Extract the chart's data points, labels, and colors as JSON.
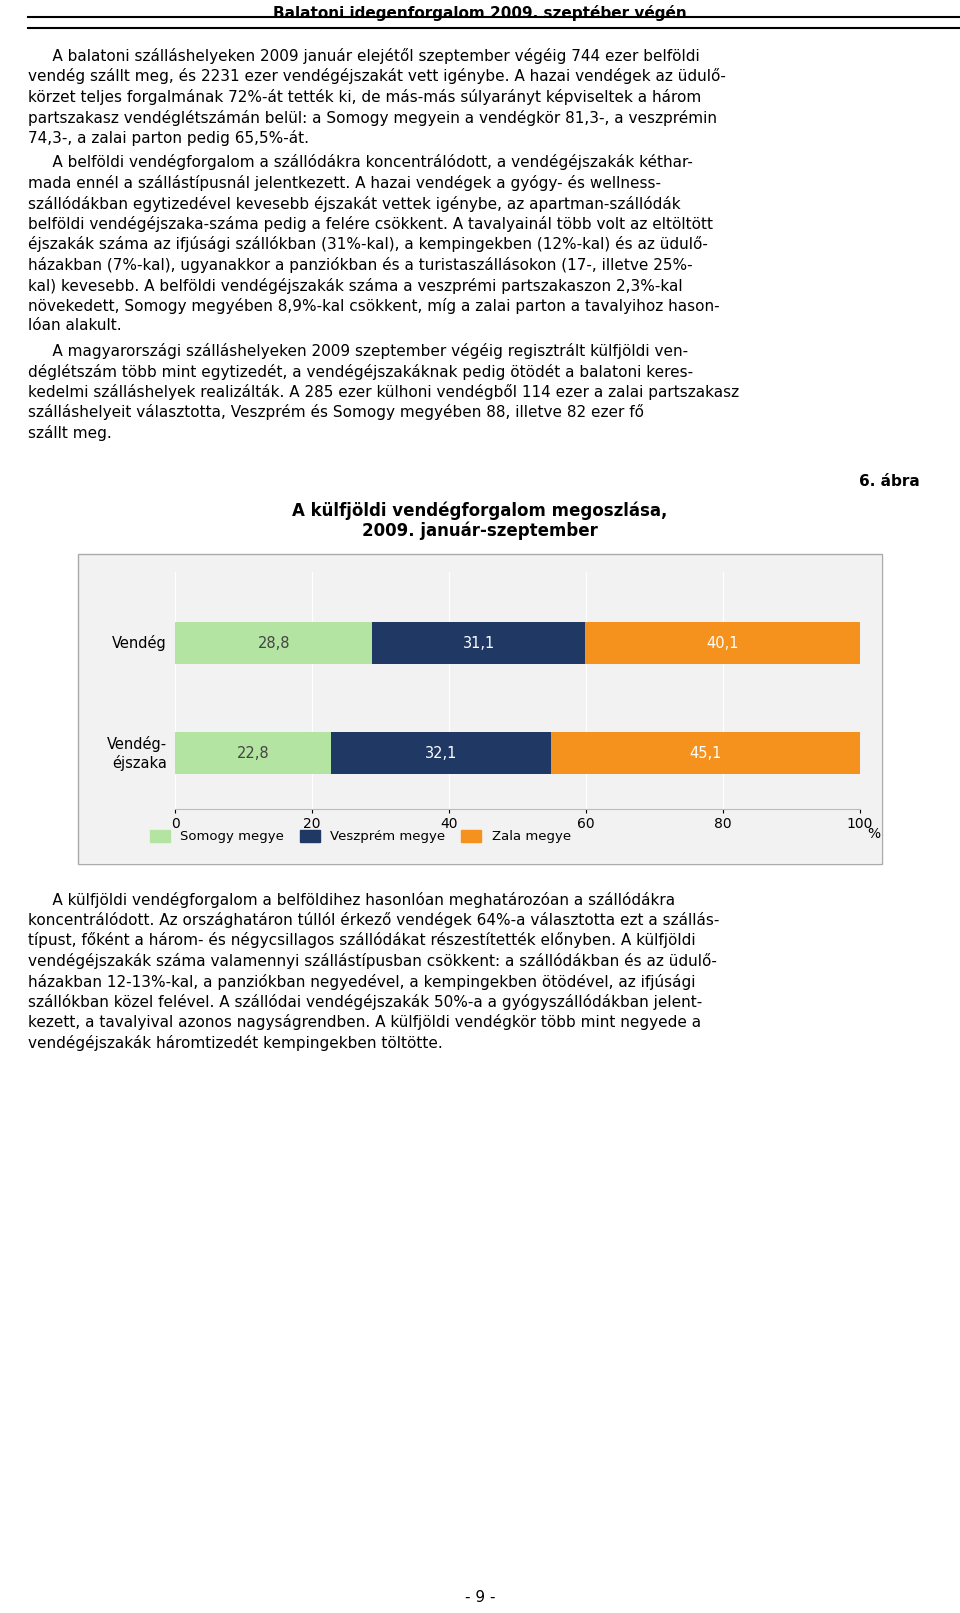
{
  "page_title": "Balatoni idegenforgalom 2009. szeptéber végén",
  "para1_lines": [
    "     A balatoni szálláshelyeken 2009 január elejétől szeptember végéig 744 ezer belföldi",
    "vendég szállt meg, és 2231 ezer vendégéjszakát vett igénybe. A hazai vendégek az üdulő-",
    "körzet teljes forgalmának 72%-át tették ki, de más-más súlyarányt képviseltek a három",
    "partszakasz vendéglétszámán belül: a Somogy megyein a vendégkör 81,3-, a veszprémin",
    "74,3-, a zalai parton pedig 65,5%-át."
  ],
  "para2_lines": [
    "     A belföldi vendégforgalom a szállódákra koncentrálódott, a vendégéjszakák kéthar-",
    "mada ennél a szállástípusnál jelentkezett. A hazai vendégek a gyógy- és wellness-",
    "szállódákban egytizedével kevesebb éjszakát vettek igénybe, az apartman-szállódák",
    "belföldi vendégéjszaka-száma pedig a felére csökkent. A tavalyainál több volt az eltöltött",
    "éjszakák száma az ifjúsági szállókban (31%-kal), a kempingekben (12%-kal) és az üdulő-",
    "házakban (7%-kal), ugyanakkor a panziókban és a turistaszállásokon (17-, illetve 25%-",
    "kal) kevesebb. A belföldi vendégéjszakák száma a veszprémi partszakaszon 2,3%-kal",
    "növekedett, Somogy megyében 8,9%-kal csökkent, míg a zalai parton a tavalyihoz hason-",
    "lóan alakult."
  ],
  "para3_lines": [
    "     A magyarországi szálláshelyeken 2009 szeptember végéig regisztrált külfjöldi ven-",
    "déglétszám több mint egytizedét, a vendégéjszakáknak pedig ötödét a balatoni keres-",
    "kedelmi szálláshelyek realizálták. A 285 ezer külhoni vendégből 114 ezer a zalai partszakasz",
    "szálláshelyeit választotta, Veszprém és Somogy megyében 88, illetve 82 ezer fő",
    "szállt meg."
  ],
  "figure_label": "6. ábra",
  "chart_title_line1": "A külfjöldi vendégforgalom megoszlása,",
  "chart_title_line2": "2009. január-szeptember",
  "somogy_values": [
    28.8,
    22.8
  ],
  "veszprem_values": [
    31.1,
    32.1
  ],
  "zala_values": [
    40.1,
    45.1
  ],
  "somogy_color": "#b3e4a1",
  "veszprem_color": "#1f3864",
  "zala_color": "#f5921e",
  "bar_labels_somogy": [
    "28,8",
    "22,8"
  ],
  "bar_labels_veszprem": [
    "31,1",
    "32,1"
  ],
  "bar_labels_zala": [
    "40,1",
    "45,1"
  ],
  "y_labels": [
    "Vendég",
    "Vendég-\néjszaka"
  ],
  "xticks": [
    0,
    20,
    40,
    60,
    80,
    100
  ],
  "legend_labels": [
    "Somogy megye",
    "Veszprém megye",
    "Zala megye"
  ],
  "para4_lines": [
    "     A külfjöldi vendégforgalom a belföldihez hasonlóan meghatározóan a szállódákra",
    "koncentrálódott. Az országhatáron túllól érkező vendégek 64%-a választotta ezt a szállás-",
    "típust, főként a három- és négycsillagos szállódákat részestítették előnyben. A külfjöldi",
    "vendégéjszakák száma valamennyi szállástípusban csökkent: a szállódákban és az üdulő-",
    "házakban 12-13%-kal, a panziókban negyedével, a kempingekben ötödével, az ifjúsági",
    "szállókban közel felével. A szállódai vendégéjszakák 50%-a a gyógyszállódákban jelent-",
    "kezett, a tavalyival azonos nagyságrendben. A külfjöldi vendégkör több mint negyede a",
    "vendégéjszakák háromtizedét kempingekben töltötte."
  ],
  "page_number": "- 9 -",
  "bg_color": "#ffffff",
  "text_color": "#000000",
  "header_color": "#000000"
}
